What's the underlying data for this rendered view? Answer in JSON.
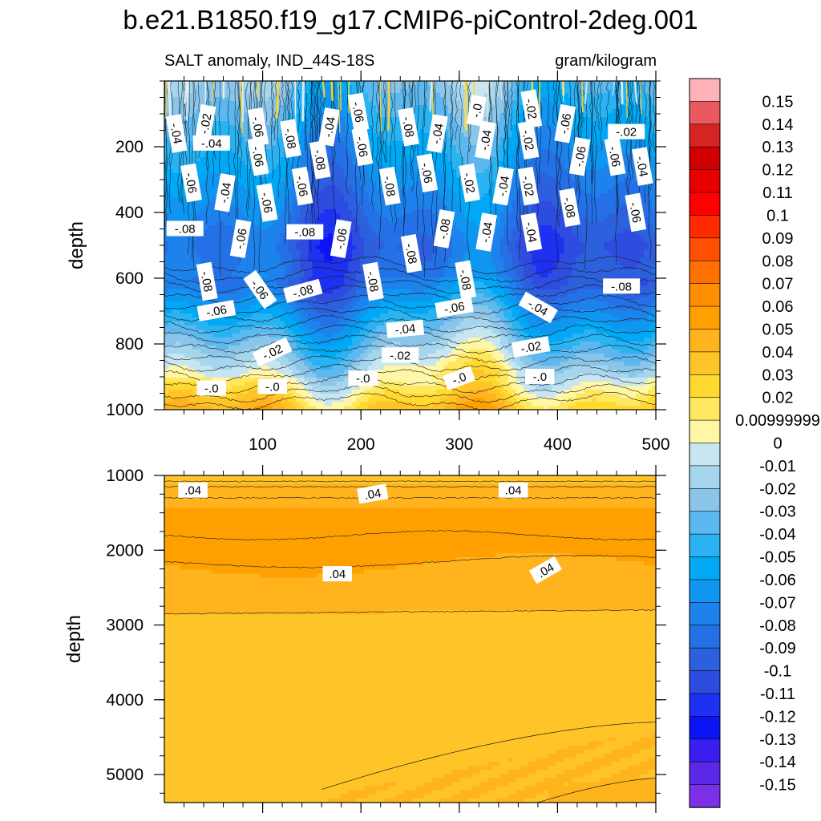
{
  "chart_data": {
    "type": "heatmap",
    "title": "b.e21.B1850.f19_g17.CMIP6-piControl-2deg.001",
    "subtitle_left": "SALT anomaly, IND_44S-18S",
    "subtitle_right": "gram/kilogram",
    "x": {
      "range": [
        0,
        500
      ],
      "tick_labels": [
        "100",
        "200",
        "300",
        "400",
        "500"
      ]
    },
    "panels": [
      {
        "name": "upper",
        "ylabel": "depth",
        "yrange": [
          0,
          1000
        ],
        "ytick_labels": [
          "200",
          "400",
          "600",
          "800",
          "1000"
        ],
        "contour_labels": [
          {
            "text": "-.04",
            "x": 12,
            "y": 160,
            "angle": 80
          },
          {
            "text": "-.02",
            "x": 42,
            "y": 130,
            "angle": -80
          },
          {
            "text": "-.04",
            "x": 48,
            "y": 190,
            "angle": 0
          },
          {
            "text": "-.06",
            "x": 95,
            "y": 140,
            "angle": 80
          },
          {
            "text": "-.04",
            "x": 168,
            "y": 140,
            "angle": -80
          },
          {
            "text": "-.06",
            "x": 197,
            "y": 95,
            "angle": 80
          },
          {
            "text": "-.08",
            "x": 248,
            "y": 140,
            "angle": 80
          },
          {
            "text": "-.04",
            "x": 278,
            "y": 160,
            "angle": -80
          },
          {
            "text": "-.0",
            "x": 318,
            "y": 90,
            "angle": -80
          },
          {
            "text": "-.02",
            "x": 373,
            "y": 85,
            "angle": 80
          },
          {
            "text": "-.06",
            "x": 408,
            "y": 130,
            "angle": -80
          },
          {
            "text": "-.02",
            "x": 470,
            "y": 155,
            "angle": 0
          },
          {
            "text": "-.08",
            "x": 128,
            "y": 175,
            "angle": 80
          },
          {
            "text": "-.06",
            "x": 95,
            "y": 230,
            "angle": 80
          },
          {
            "text": "-.08",
            "x": 158,
            "y": 240,
            "angle": 80
          },
          {
            "text": "-.06",
            "x": 201,
            "y": 200,
            "angle": 80
          },
          {
            "text": "-.04",
            "x": 327,
            "y": 180,
            "angle": -80
          },
          {
            "text": "-.02",
            "x": 370,
            "y": 180,
            "angle": 80
          },
          {
            "text": "-.06",
            "x": 423,
            "y": 230,
            "angle": -80
          },
          {
            "text": "-.06",
            "x": 458,
            "y": 230,
            "angle": 80
          },
          {
            "text": "-.04",
            "x": 486,
            "y": 260,
            "angle": 80
          },
          {
            "text": "-.06",
            "x": 27,
            "y": 310,
            "angle": 80
          },
          {
            "text": "-.04",
            "x": 62,
            "y": 340,
            "angle": -80
          },
          {
            "text": "-.06",
            "x": 140,
            "y": 320,
            "angle": 80
          },
          {
            "text": "-.08",
            "x": 229,
            "y": 320,
            "angle": 80
          },
          {
            "text": "-.06",
            "x": 267,
            "y": 280,
            "angle": 80
          },
          {
            "text": "-.02",
            "x": 310,
            "y": 310,
            "angle": 80
          },
          {
            "text": "-.04",
            "x": 345,
            "y": 320,
            "angle": -80
          },
          {
            "text": "-.02",
            "x": 370,
            "y": 320,
            "angle": 80
          },
          {
            "text": "-.06",
            "x": 104,
            "y": 370,
            "angle": 80
          },
          {
            "text": "-.08",
            "x": 21,
            "y": 450,
            "angle": 0
          },
          {
            "text": "-.08",
            "x": 143,
            "y": 460,
            "angle": 0
          },
          {
            "text": "-.06",
            "x": 180,
            "y": 480,
            "angle": -80
          },
          {
            "text": "-.08",
            "x": 285,
            "y": 450,
            "angle": -80
          },
          {
            "text": "-.04",
            "x": 328,
            "y": 460,
            "angle": -80
          },
          {
            "text": "-.04",
            "x": 373,
            "y": 460,
            "angle": 80
          },
          {
            "text": "-.08",
            "x": 412,
            "y": 385,
            "angle": 80
          },
          {
            "text": "-.06",
            "x": 479,
            "y": 400,
            "angle": 80
          },
          {
            "text": "-.06",
            "x": 78,
            "y": 480,
            "angle": -80
          },
          {
            "text": "-.08",
            "x": 251,
            "y": 525,
            "angle": 80
          },
          {
            "text": "-.08",
            "x": 43,
            "y": 610,
            "angle": 80
          },
          {
            "text": "-.08",
            "x": 212,
            "y": 610,
            "angle": 80
          },
          {
            "text": "-.08",
            "x": 306,
            "y": 605,
            "angle": 80
          },
          {
            "text": "-.06",
            "x": 97,
            "y": 635,
            "angle": 55
          },
          {
            "text": "-.08",
            "x": 141,
            "y": 640,
            "angle": -15
          },
          {
            "text": "-.08",
            "x": 465,
            "y": 625,
            "angle": 0
          },
          {
            "text": "-.06",
            "x": 53,
            "y": 700,
            "angle": -10
          },
          {
            "text": "-.06",
            "x": 295,
            "y": 690,
            "angle": -10
          },
          {
            "text": "-.04",
            "x": 380,
            "y": 690,
            "angle": 30
          },
          {
            "text": "-.04",
            "x": 245,
            "y": 755,
            "angle": -5
          },
          {
            "text": "-.02",
            "x": 110,
            "y": 825,
            "angle": -25
          },
          {
            "text": "-.02",
            "x": 240,
            "y": 835,
            "angle": 0
          },
          {
            "text": "-.02",
            "x": 373,
            "y": 810,
            "angle": -10
          },
          {
            "text": "-.0",
            "x": 48,
            "y": 935,
            "angle": 0
          },
          {
            "text": "-.0",
            "x": 110,
            "y": 930,
            "angle": 0
          },
          {
            "text": "-.0",
            "x": 202,
            "y": 905,
            "angle": 0
          },
          {
            "text": "-.0",
            "x": 300,
            "y": 905,
            "angle": -20
          },
          {
            "text": "-.0",
            "x": 382,
            "y": 900,
            "angle": 0
          }
        ]
      },
      {
        "name": "lower",
        "ylabel": "depth",
        "yrange": [
          1000,
          5375
        ],
        "ytick_labels": [
          "1000",
          "2000",
          "3000",
          "4000",
          "5000"
        ],
        "contour_labels": [
          {
            "text": ".04",
            "x": 29,
            "y": 1200,
            "angle": 0
          },
          {
            "text": ".04",
            "x": 212,
            "y": 1250,
            "angle": -10
          },
          {
            "text": ".04",
            "x": 355,
            "y": 1200,
            "angle": 0
          },
          {
            "text": ".04",
            "x": 176,
            "y": 2320,
            "angle": 0
          },
          {
            "text": ".04",
            "x": 388,
            "y": 2270,
            "angle": -30
          }
        ]
      }
    ],
    "colorbar": {
      "labels": [
        "0.15",
        "0.14",
        "0.13",
        "0.12",
        "0.11",
        "0.1",
        "0.09",
        "0.08",
        "0.07",
        "0.06",
        "0.05",
        "0.04",
        "0.03",
        "0.02",
        "0.00999999",
        "0",
        "-0.01",
        "-0.02",
        "-0.03",
        "-0.04",
        "-0.05",
        "-0.06",
        "-0.07",
        "-0.08",
        "-0.09",
        "-0.1",
        "-0.11",
        "-0.12",
        "-0.13",
        "-0.14",
        "-0.15"
      ],
      "colors": [
        "#FFB3B8",
        "#E85A60",
        "#D42424",
        "#D00000",
        "#E80000",
        "#FF0000",
        "#FF2A00",
        "#FF5000",
        "#FF7000",
        "#FF8E00",
        "#FFA000",
        "#FFB41E",
        "#FFC528",
        "#FFD830",
        "#FFE860",
        "#FFF7A6",
        "#C8E6F2",
        "#A6D6EE",
        "#8BC6EA",
        "#5CB8EE",
        "#29B3F3",
        "#00A8F5",
        "#0F96F0",
        "#1E82EC",
        "#2470E6",
        "#2C60DD",
        "#2E4DE0",
        "#1E30F0",
        "#0A14F5",
        "#3A1EF0",
        "#5A28E6",
        "#7B2FE6"
      ]
    }
  }
}
